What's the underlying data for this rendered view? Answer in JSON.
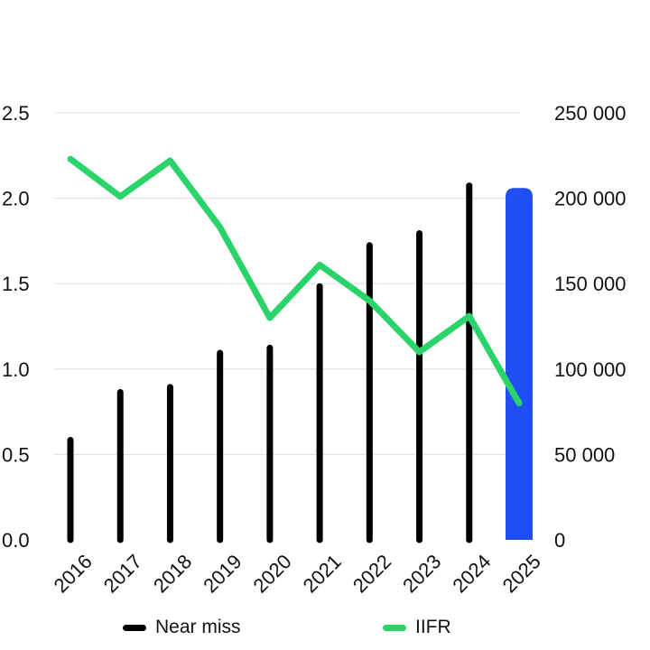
{
  "chart_data": {
    "type": "bar",
    "categories": [
      "2016",
      "2017",
      "2018",
      "2019",
      "2020",
      "2021",
      "2022",
      "2023",
      "2024",
      "2025"
    ],
    "left_axis": {
      "min": 0,
      "max": 2.5,
      "ticks": [
        "0.0",
        "0.5",
        "1.0",
        "1.5",
        "2.0",
        "2.5"
      ],
      "tick_values": [
        0,
        0.5,
        1.0,
        1.5,
        2.0,
        2.5
      ]
    },
    "right_axis": {
      "min": 0,
      "max": 250000,
      "ticks": [
        "0",
        "50 000",
        "100 000",
        "150 000",
        "200 000",
        "250 000"
      ],
      "tick_values": [
        0,
        50000,
        100000,
        150000,
        200000,
        250000
      ]
    },
    "series": [
      {
        "name": "Near miss",
        "type": "bar",
        "axis": "right",
        "color": "#000000",
        "values": [
          60000,
          88000,
          91000,
          111000,
          114000,
          150000,
          174000,
          181000,
          209000,
          206000
        ],
        "highlight_last_color": "#1f4ff5"
      },
      {
        "name": "IIFR",
        "type": "line",
        "axis": "left",
        "color": "#2bd46b",
        "values": [
          2.23,
          2.01,
          2.22,
          1.83,
          1.3,
          1.61,
          1.4,
          1.1,
          1.31,
          0.8
        ]
      }
    ],
    "grid": true,
    "legend": "bottom"
  },
  "legend": [
    {
      "label": "Near miss",
      "color": "#000000"
    },
    {
      "label": "IIFR",
      "color": "#2bd46b"
    }
  ]
}
